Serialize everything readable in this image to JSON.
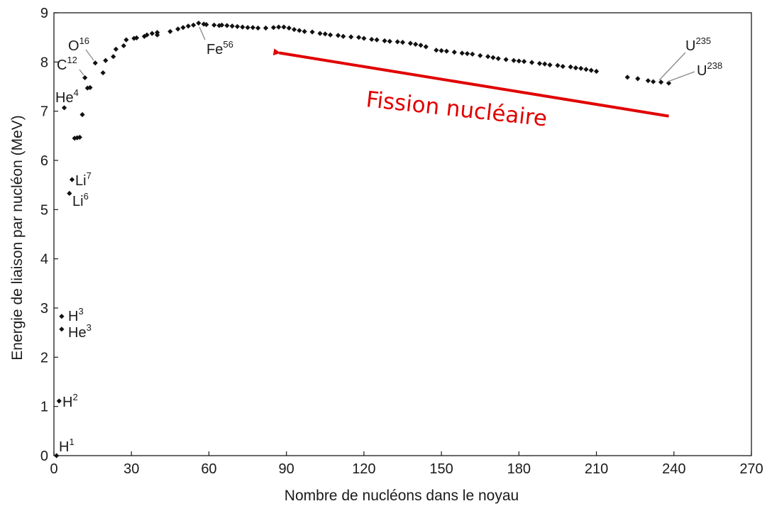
{
  "chart_data": {
    "type": "scatter",
    "title": "",
    "xlabel": "Nombre de nucléons dans le noyau",
    "ylabel": "Energie de liaison par nucléon (MeV)",
    "xlim": [
      0,
      270
    ],
    "ylim": [
      0,
      9
    ],
    "xticks": [
      "0",
      "30",
      "60",
      "90",
      "120",
      "150",
      "180",
      "210",
      "240",
      "270"
    ],
    "yticks": [
      "0",
      "1",
      "2",
      "3",
      "4",
      "5",
      "6",
      "7",
      "8",
      "9"
    ],
    "grid": false,
    "legend": "none",
    "marker_color": "#111111",
    "points": [
      [
        1,
        0.0
      ],
      [
        2,
        1.11
      ],
      [
        3,
        2.83
      ],
      [
        3,
        2.57
      ],
      [
        4,
        7.07
      ],
      [
        6,
        5.33
      ],
      [
        7,
        5.61
      ],
      [
        8,
        6.45
      ],
      [
        9,
        6.46
      ],
      [
        10,
        6.47
      ],
      [
        11,
        6.93
      ],
      [
        12,
        7.68
      ],
      [
        13,
        7.47
      ],
      [
        14,
        7.48
      ],
      [
        16,
        7.98
      ],
      [
        19,
        7.78
      ],
      [
        20,
        8.03
      ],
      [
        23,
        8.11
      ],
      [
        24,
        8.26
      ],
      [
        27,
        8.33
      ],
      [
        28,
        8.45
      ],
      [
        31,
        8.48
      ],
      [
        32,
        8.49
      ],
      [
        35,
        8.52
      ],
      [
        36,
        8.55
      ],
      [
        38,
        8.58
      ],
      [
        40,
        8.55
      ],
      [
        40,
        8.6
      ],
      [
        45,
        8.62
      ],
      [
        48,
        8.67
      ],
      [
        50,
        8.7
      ],
      [
        52,
        8.73
      ],
      [
        54,
        8.75
      ],
      [
        56,
        8.79
      ],
      [
        58,
        8.77
      ],
      [
        59,
        8.76
      ],
      [
        62,
        8.75
      ],
      [
        64,
        8.74
      ],
      [
        65,
        8.75
      ],
      [
        67,
        8.74
      ],
      [
        69,
        8.73
      ],
      [
        71,
        8.72
      ],
      [
        73,
        8.71
      ],
      [
        75,
        8.7
      ],
      [
        77,
        8.7
      ],
      [
        79,
        8.69
      ],
      [
        82,
        8.69
      ],
      [
        85,
        8.7
      ],
      [
        87,
        8.71
      ],
      [
        89,
        8.71
      ],
      [
        91,
        8.69
      ],
      [
        93,
        8.66
      ],
      [
        95,
        8.64
      ],
      [
        97,
        8.62
      ],
      [
        100,
        8.61
      ],
      [
        103,
        8.58
      ],
      [
        105,
        8.57
      ],
      [
        107,
        8.55
      ],
      [
        110,
        8.54
      ],
      [
        112,
        8.52
      ],
      [
        115,
        8.51
      ],
      [
        118,
        8.5
      ],
      [
        120,
        8.48
      ],
      [
        123,
        8.46
      ],
      [
        125,
        8.45
      ],
      [
        128,
        8.43
      ],
      [
        130,
        8.42
      ],
      [
        133,
        8.41
      ],
      [
        135,
        8.4
      ],
      [
        138,
        8.38
      ],
      [
        140,
        8.36
      ],
      [
        142,
        8.34
      ],
      [
        144,
        8.31
      ],
      [
        148,
        8.24
      ],
      [
        150,
        8.23
      ],
      [
        152,
        8.22
      ],
      [
        155,
        8.2
      ],
      [
        158,
        8.18
      ],
      [
        160,
        8.17
      ],
      [
        162,
        8.16
      ],
      [
        165,
        8.13
      ],
      [
        168,
        8.11
      ],
      [
        170,
        8.09
      ],
      [
        172,
        8.07
      ],
      [
        175,
        8.05
      ],
      [
        178,
        8.03
      ],
      [
        180,
        8.02
      ],
      [
        182,
        8.01
      ],
      [
        185,
        7.99
      ],
      [
        188,
        7.97
      ],
      [
        190,
        7.96
      ],
      [
        192,
        7.94
      ],
      [
        195,
        7.93
      ],
      [
        197,
        7.91
      ],
      [
        200,
        7.9
      ],
      [
        202,
        7.88
      ],
      [
        204,
        7.87
      ],
      [
        206,
        7.85
      ],
      [
        208,
        7.83
      ],
      [
        210,
        7.81
      ],
      [
        222,
        7.69
      ],
      [
        226,
        7.66
      ],
      [
        230,
        7.62
      ],
      [
        232,
        7.6
      ],
      [
        235,
        7.59
      ],
      [
        238,
        7.57
      ]
    ],
    "labels": [
      {
        "name": "H",
        "mass": "1"
      },
      {
        "name": "H",
        "mass": "2"
      },
      {
        "name": "H",
        "mass": "3"
      },
      {
        "name": "He",
        "mass": "3"
      },
      {
        "name": "Li",
        "mass": "6"
      },
      {
        "name": "Li",
        "mass": "7"
      },
      {
        "name": "He",
        "mass": "4"
      },
      {
        "name": "C",
        "mass": "12"
      },
      {
        "name": "O",
        "mass": "16"
      },
      {
        "name": "Fe",
        "mass": "56"
      },
      {
        "name": "U",
        "mass": "235"
      },
      {
        "name": "U",
        "mass": "238"
      }
    ],
    "annotation": {
      "text": "Fission nucléaire",
      "color": "#e00000",
      "arrow_from": [
        238,
        6.9
      ],
      "arrow_to": [
        85,
        8.2
      ]
    }
  }
}
